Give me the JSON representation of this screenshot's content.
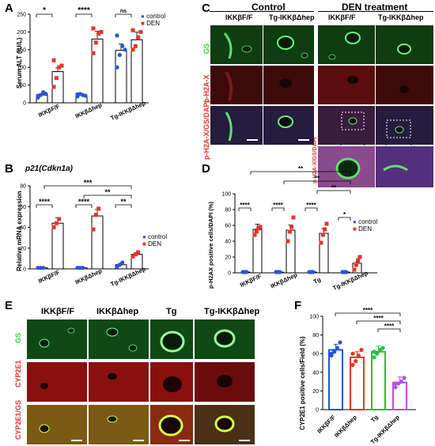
{
  "panels": {
    "a": "A",
    "b": "B",
    "c": "C",
    "d": "D",
    "e": "E",
    "f": "F"
  },
  "legend": {
    "control": "control",
    "den": "DEN"
  },
  "colors": {
    "control": "#2b53d6",
    "den": "#e8332a",
    "ikkff": "#2453d8",
    "ikkhep": "#e8332a",
    "tg": "#22c43a",
    "tgikk": "#b44ee0"
  },
  "panel_a": {
    "ylabel": "Serum ALT (IU/L)",
    "groups": [
      "IKKβF/F",
      "IKKβΔhep",
      "Tg-IKKβΔhep"
    ],
    "sig": [
      "*",
      "****",
      "ns"
    ],
    "yticks": [
      "0",
      "50",
      "100",
      "150",
      "200",
      "250"
    ]
  },
  "panel_b": {
    "title": "p21(Cdkn1a)",
    "ylabel": "Relative mRNA expression",
    "groups": [
      "IKKβF/F",
      "IKKβΔhep",
      "Tg-IKKβΔhep"
    ],
    "sig": [
      "****",
      "****",
      "**",
      "**",
      "***"
    ],
    "yticks": [
      "0",
      "20",
      "40",
      "60",
      "80"
    ]
  },
  "panel_c": {
    "header_left": "Control",
    "header_right": "DEN treatment",
    "cols": [
      "IKKβF/F",
      "Tg-IKKβΔhep",
      "IKKβF/F",
      "Tg-IKKβΔhep"
    ],
    "rows": [
      "GS",
      "p-H2A-X",
      "p-H2A-X/GS/DAPI"
    ]
  },
  "panel_d": {
    "ylabel": "p-H2AX positive cells/DAPI (%)",
    "groups": [
      "IKKβF/F",
      "IKKβΔhep",
      "Tg",
      "Tg-IKKβΔhep"
    ],
    "sig": [
      "****",
      "****",
      "****",
      "*",
      "**",
      "**",
      "**"
    ],
    "yticks": [
      "0",
      "20",
      "40",
      "60",
      "80",
      "100"
    ]
  },
  "panel_e": {
    "cols": [
      "IKKβF/F",
      "IKKβΔhep",
      "Tg",
      "Tg-IKKβΔhep"
    ],
    "rows": [
      "GS",
      "CYP2E1",
      "CYP2E1/GS"
    ]
  },
  "panel_f": {
    "ylabel": "CYP2E1 positive cells/Field (%)",
    "groups": [
      "IKKβF/F",
      "IKKβΔhep",
      "Tg",
      "Tg-IKKβΔhep"
    ],
    "sig": [
      "****",
      "****",
      "****"
    ],
    "yticks": [
      "0",
      "20",
      "40",
      "60",
      "80",
      "100"
    ]
  },
  "chart_data": [
    {
      "type": "bar",
      "panel": "A",
      "categories": [
        "IKKβF/F",
        "IKKβΔhep",
        "Tg-IKKβΔhep"
      ],
      "series": [
        {
          "name": "control",
          "values": [
            22,
            22,
            148
          ],
          "points": [
            [
              15,
              22,
              30,
              25,
              20
            ],
            [
              18,
              25,
              22,
              20,
              24
            ],
            [
              100,
              135,
              160,
              150,
              190
            ]
          ]
        },
        {
          "name": "DEN",
          "values": [
            88,
            180,
            178
          ],
          "points": [
            [
              45,
              70,
              100,
              105,
              120
            ],
            [
              140,
              170,
              195,
              200,
              210
            ],
            [
              150,
              160,
              185,
              200,
              205
            ]
          ]
        }
      ],
      "ylabel": "Serum ALT (IU/L)",
      "ylim": [
        0,
        250
      ]
    },
    {
      "type": "bar",
      "panel": "B",
      "title": "p21(Cdkn1a)",
      "categories": [
        "IKKβF/F",
        "IKKβΔhep",
        "Tg-IKKβΔhep"
      ],
      "series": [
        {
          "name": "control",
          "values": [
            1,
            1,
            4
          ],
          "points": [
            [
              1,
              1,
              1
            ],
            [
              1,
              1,
              1
            ],
            [
              2,
              4,
              6
            ]
          ]
        },
        {
          "name": "DEN",
          "values": [
            44,
            51,
            14
          ],
          "points": [
            [
              40,
              44,
              48
            ],
            [
              38,
              52,
              58
            ],
            [
              12,
              14,
              16
            ]
          ]
        }
      ],
      "ylabel": "Relative mRNA expression",
      "ylim": [
        0,
        80
      ]
    },
    {
      "type": "bar",
      "panel": "D",
      "categories": [
        "IKKβF/F",
        "IKKβΔhep",
        "Tg",
        "Tg-IKKβΔhep"
      ],
      "series": [
        {
          "name": "control",
          "values": [
            1,
            1,
            1,
            1
          ],
          "points": [
            [
              1,
              1,
              1
            ],
            [
              1,
              1,
              1
            ],
            [
              1,
              1,
              1
            ],
            [
              1,
              1,
              1
            ]
          ]
        },
        {
          "name": "DEN",
          "values": [
            55,
            54,
            50,
            12
          ],
          "points": [
            [
              48,
              52,
              56,
              58
            ],
            [
              40,
              52,
              58,
              70
            ],
            [
              38,
              48,
              55,
              62
            ],
            [
              4,
              10,
              16,
              20
            ]
          ]
        }
      ],
      "ylabel": "p-H2AX positive cells/DAPI (%)",
      "ylim": [
        0,
        100
      ]
    },
    {
      "type": "bar",
      "panel": "F",
      "categories": [
        "IKKβF/F",
        "IKKβΔhep",
        "Tg",
        "Tg-IKKβΔhep"
      ],
      "values": [
        64,
        56,
        62,
        29
      ],
      "points": [
        [
          58,
          62,
          66,
          72,
          60
        ],
        [
          48,
          52,
          58,
          64,
          60
        ],
        [
          56,
          60,
          64,
          66,
          62
        ],
        [
          24,
          28,
          30,
          34,
          28
        ]
      ],
      "ylabel": "CYP2E1 positive cells/Field (%)",
      "ylim": [
        0,
        100
      ]
    }
  ]
}
